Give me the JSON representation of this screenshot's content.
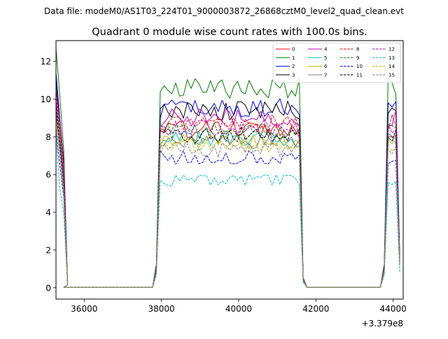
{
  "chart_data": {
    "type": "line",
    "suptitle": "Data file: modeM0/AS1T03_224T01_9000003872_26868cztM0_level2_quad_clean.evt",
    "title": "Quadrant 0 module wise count rates with 100.0s bins.",
    "xlabel": "",
    "ylabel": "",
    "x_offset_label": "+3.379e8",
    "xlim": [
      35270,
      44260
    ],
    "ylim": [
      -0.6,
      13.1
    ],
    "xticks": [
      36000,
      38000,
      40000,
      42000,
      44000
    ],
    "xtick_labels": [
      "36000",
      "38000",
      "40000",
      "42000",
      "44000"
    ],
    "yticks": [
      0,
      2,
      4,
      6,
      8,
      10,
      12
    ],
    "ytick_labels": [
      "0",
      "2",
      "4",
      "6",
      "8",
      "10",
      "12"
    ],
    "grid": false,
    "legend_position": "top-right",
    "legend_columns": 4,
    "segments": [
      {
        "x0": 35270,
        "n": 4
      },
      {
        "x0": 35470,
        "n": 24,
        "gap": true
      },
      {
        "x0": 37870,
        "n": 39
      },
      {
        "x0": 41770,
        "n": 20,
        "gap": true
      },
      {
        "x0": 43770,
        "n": 5
      }
    ],
    "series": [
      {
        "name": "0",
        "color": "#ff0000",
        "dash": "solid",
        "level": 8.4,
        "start": 9.9,
        "end": 1.4
      },
      {
        "name": "1",
        "color": "#008000",
        "dash": "solid",
        "level": 10.6,
        "start": 12.7,
        "end": 1.7
      },
      {
        "name": "2",
        "color": "#0000ff",
        "dash": "solid",
        "level": 9.5,
        "start": 11.4,
        "end": 1.6
      },
      {
        "name": "3",
        "color": "#000000",
        "dash": "solid",
        "level": 9.4,
        "start": 11.0,
        "end": 1.5
      },
      {
        "name": "4",
        "color": "#bf00bf",
        "dash": "solid",
        "level": 9.0,
        "start": 10.5,
        "end": 1.5
      },
      {
        "name": "5",
        "color": "#00bfbf",
        "dash": "solid",
        "level": 7.9,
        "start": 9.3,
        "end": 1.3
      },
      {
        "name": "6",
        "color": "#bfbf00",
        "dash": "solid",
        "level": 7.7,
        "start": 9.0,
        "end": 1.3
      },
      {
        "name": "7",
        "color": "#808080",
        "dash": "solid",
        "level": 7.8,
        "start": 9.1,
        "end": 1.3
      },
      {
        "name": "8",
        "color": "#ff0000",
        "dash": "dashed",
        "level": 8.7,
        "start": 10.2,
        "end": 1.4
      },
      {
        "name": "9",
        "color": "#008000",
        "dash": "dashed",
        "level": 8.3,
        "start": 9.7,
        "end": 1.4
      },
      {
        "name": "10",
        "color": "#0000ff",
        "dash": "dashed",
        "level": 6.9,
        "start": 8.3,
        "end": 1.2
      },
      {
        "name": "11",
        "color": "#000000",
        "dash": "dashed",
        "level": 8.1,
        "start": 9.5,
        "end": 1.3
      },
      {
        "name": "12",
        "color": "#bf00bf",
        "dash": "dashed",
        "level": 8.5,
        "start": 10.0,
        "end": 1.4
      },
      {
        "name": "13",
        "color": "#00bfbf",
        "dash": "dashed",
        "level": 5.7,
        "start": 8.0,
        "end": 0.8
      },
      {
        "name": "14",
        "color": "#bfbf00",
        "dash": "dashed",
        "level": 7.6,
        "start": 8.9,
        "end": 1.2
      },
      {
        "name": "15",
        "color": "#808080",
        "dash": "dashed",
        "level": 7.3,
        "start": 8.6,
        "end": 1.2
      }
    ]
  }
}
